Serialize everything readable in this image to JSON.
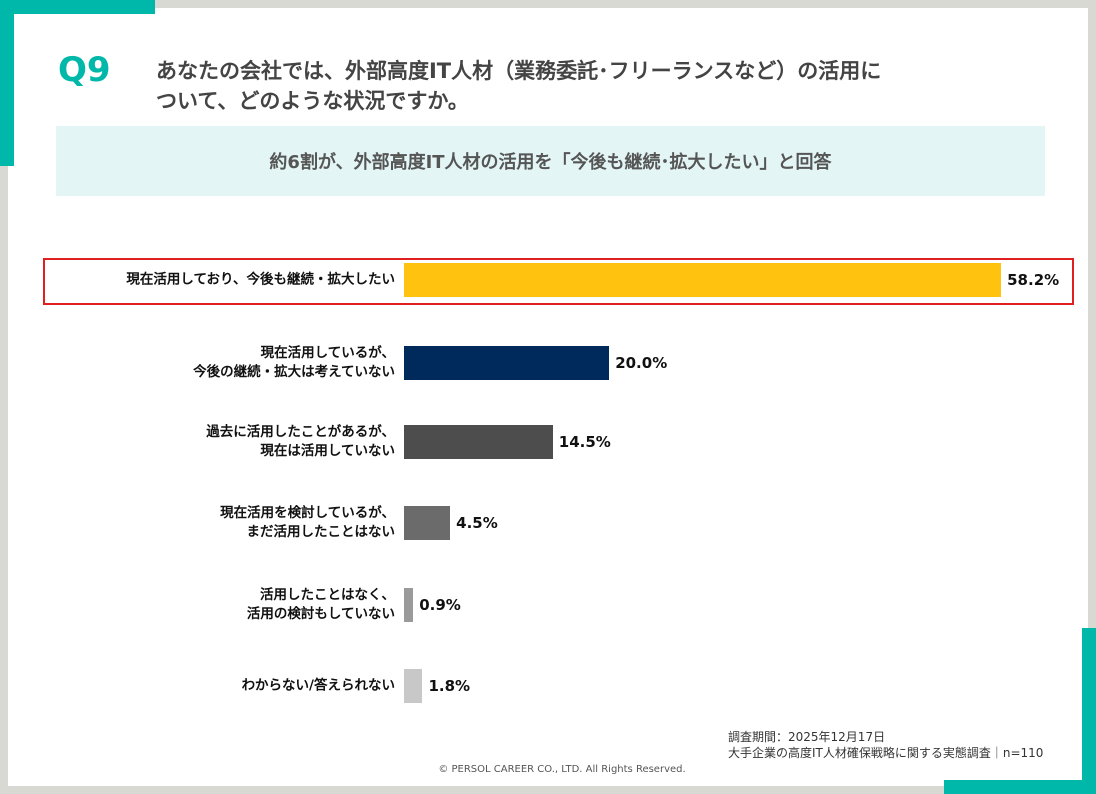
{
  "header": {
    "number": "Q9",
    "question": "あなたの会社では、外部高度IT人材（業務委託･フリーランスなど）の活用に\nついて、どのような状況ですか。",
    "summary": "約6割が、外部高度IT人材の活用を「今後も継続･拡大したい」と回答"
  },
  "chart_data": {
    "type": "bar",
    "orientation": "horizontal",
    "categories": [
      "現在活用しており、今後も継続・拡大したい",
      "現在活用しているが、\n今後の継続・拡大は考えていない",
      "過去に活用したことがあるが、\n現在は活用していない",
      "現在活用を検討しているが、\nまだ活用したことはない",
      "活用したことはなく、\n活用の検討もしていない",
      "わからない/答えられない"
    ],
    "values": [
      58.2,
      20.0,
      14.5,
      4.5,
      0.9,
      1.8
    ],
    "value_labels": [
      "58.2%",
      "20.0%",
      "14.5%",
      "4.5%",
      "0.9%",
      "1.8%"
    ],
    "colors": [
      "#ffc20e",
      "#002a5c",
      "#4d4d4d",
      "#6b6b6b",
      "#9a9a9a",
      "#c8c8c8"
    ]
  },
  "footer": {
    "period": "調査期間：2025年12月17日",
    "source": "大手企業の高度IT人材確保戦略に関する実態調査｜n=110",
    "copyright": "© PERSOL CAREER CO., LTD. All Rights Reserved."
  }
}
